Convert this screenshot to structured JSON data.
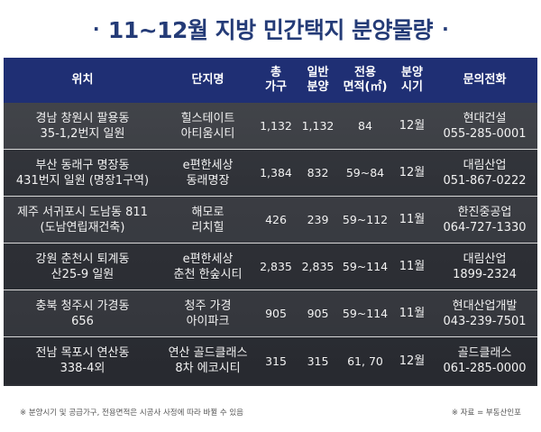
{
  "title": "11~12월 지방 민간택지 분양물량",
  "title_bullet": "·",
  "header": {
    "location": "위치",
    "complex": "단지명",
    "total_l1": "총",
    "total_l2": "가구",
    "general_l1": "일반",
    "general_l2": "분양",
    "area_l1": "전용",
    "area_l2": "면적(㎡)",
    "period_l1": "분양",
    "period_l2": "시기",
    "contact": "문의전화"
  },
  "rows": [
    {
      "loc1": "경남 창원시 팔용동",
      "loc2": "35-1,2번지 일원",
      "name1": "힐스테이트",
      "name2": "아티움시티",
      "total": "1,132",
      "general": "1,132",
      "area": "84",
      "period": "12월",
      "company": "현대건설",
      "phone": "055-285-0001"
    },
    {
      "loc1": "부산 동래구 명장동",
      "loc2": "431번지 일원 (명장1구역)",
      "name1": "e편한세상",
      "name2": "동래명장",
      "total": "1,384",
      "general": "832",
      "area": "59~84",
      "period": "12월",
      "company": "대림산업",
      "phone": "051-867-0222"
    },
    {
      "loc1": "제주 서귀포시 도남동 811",
      "loc2": "(도남연립재건축)",
      "name1": "해모로",
      "name2": "리치힐",
      "total": "426",
      "general": "239",
      "area": "59~112",
      "period": "11월",
      "company": "한진중공업",
      "phone": "064-727-1330"
    },
    {
      "loc1": "강원 춘천시 퇴계동",
      "loc2": "산25-9 일원",
      "name1": "e편한세상",
      "name2": "춘천 한숲시티",
      "total": "2,835",
      "general": "2,835",
      "area": "59~114",
      "period": "11월",
      "company": "대림산업",
      "phone": "1899-2324"
    },
    {
      "loc1": "충북 청주시 가경동",
      "loc2": "656",
      "name1": "청주 가경",
      "name2": "아이파크",
      "total": "905",
      "general": "905",
      "area": "59~114",
      "period": "11월",
      "company": "현대산업개발",
      "phone": "043-239-7501"
    },
    {
      "loc1": "전남 목포시 연산동",
      "loc2": "338-4외",
      "name1": "연산 골드클래스",
      "name2": "8차 에코시티",
      "total": "315",
      "general": "315",
      "area": "61, 70",
      "period": "12월",
      "company": "골드클래스",
      "phone": "061-285-0000"
    }
  ],
  "footer": {
    "note": "※ 분양시기 및 공급가구, 전용면적은 시공사 사정에 따라 바뀔 수 있음",
    "source": "※ 자료 = 부동산인포"
  },
  "colors": {
    "title": "#243b77",
    "header_bg": "#1f2f74",
    "row_text": "#f2f2f2"
  }
}
